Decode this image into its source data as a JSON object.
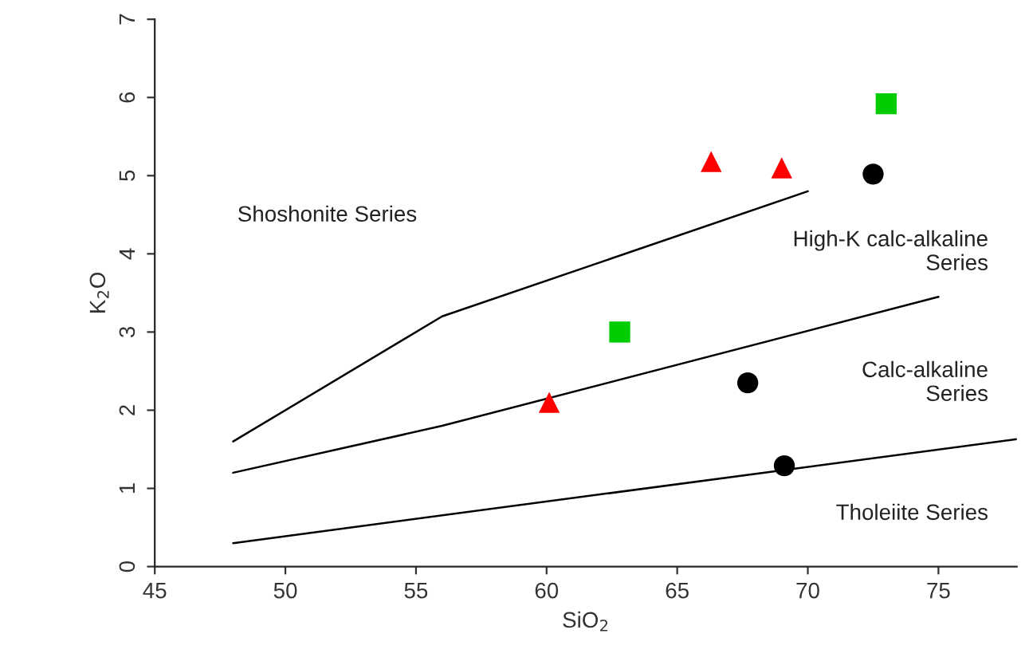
{
  "chart_data": {
    "type": "scatter",
    "xlabel": "SiO$_{2}$",
    "ylabel": "K$_{2}$O",
    "xlim": [
      45,
      78
    ],
    "ylim": [
      0,
      7
    ],
    "xticks": [
      45,
      50,
      55,
      60,
      65,
      70,
      75
    ],
    "yticks": [
      0,
      1,
      2,
      3,
      4,
      5,
      6,
      7
    ],
    "grid": false,
    "legend": false,
    "series": [
      {
        "type": "line",
        "color": "#000000",
        "x": [
          48,
          56,
          70
        ],
        "values": [
          1.6,
          3.2,
          4.8
        ],
        "marker": "none"
      },
      {
        "type": "line",
        "color": "#000000",
        "x": [
          48,
          56,
          75
        ],
        "values": [
          1.2,
          1.8,
          3.45
        ],
        "marker": "none"
      },
      {
        "type": "line",
        "color": "#000000",
        "x": [
          48,
          78
        ],
        "values": [
          0.3,
          1.63
        ],
        "marker": "none"
      },
      {
        "color": "#ff0000",
        "marker": "triangle",
        "x": [
          60.1,
          66.3,
          69.0
        ],
        "values": [
          2.1,
          5.18,
          5.1
        ]
      },
      {
        "color": "#00cc00",
        "marker": "square",
        "x": [
          62.8,
          73.0
        ],
        "values": [
          3.0,
          5.92
        ]
      },
      {
        "color": "#000000",
        "marker": "circle",
        "x": [
          72.5,
          67.7,
          69.1
        ],
        "values": [
          5.02,
          2.35,
          1.29
        ]
      }
    ],
    "annotations": [
      "Shoshonite Series",
      "High-K calc-alkaline\nSeries",
      "Calc-alkaline\nSeries",
      "Tholeiite Series"
    ]
  }
}
